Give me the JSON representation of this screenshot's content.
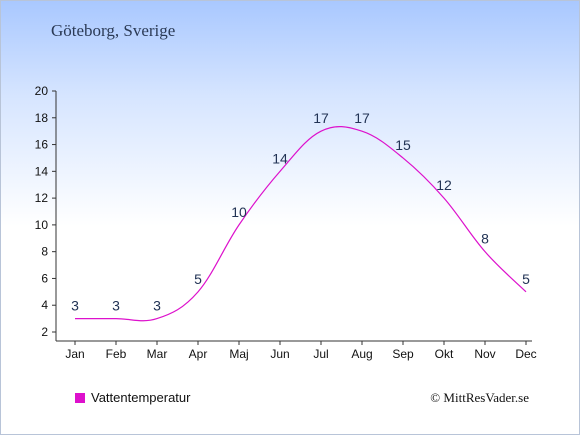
{
  "location": "Göteborg, Sverige",
  "legend": {
    "label": "Vattentemperatur"
  },
  "copyright": "© MittResVader.se",
  "colors": {
    "series": "#dd11cc",
    "axis": "#333333"
  },
  "chart_data": {
    "type": "line",
    "title": "",
    "xlabel": "",
    "ylabel": "",
    "categories": [
      "Jan",
      "Feb",
      "Mar",
      "Apr",
      "Maj",
      "Jun",
      "Jul",
      "Aug",
      "Sep",
      "Okt",
      "Nov",
      "Dec"
    ],
    "series": [
      {
        "name": "Vattentemperatur",
        "values": [
          3,
          3,
          3,
          5,
          10,
          14,
          17,
          17,
          15,
          12,
          8,
          5
        ]
      }
    ],
    "data_labels": [
      "3",
      "3",
      "3",
      "5",
      "10",
      "14",
      "17",
      "17",
      "15",
      "12",
      "8",
      "5"
    ],
    "ylim": [
      2,
      20
    ],
    "yticks": [
      2,
      4,
      6,
      8,
      10,
      12,
      14,
      16,
      18,
      20
    ],
    "grid": false,
    "legend_position": "bottom-left"
  }
}
